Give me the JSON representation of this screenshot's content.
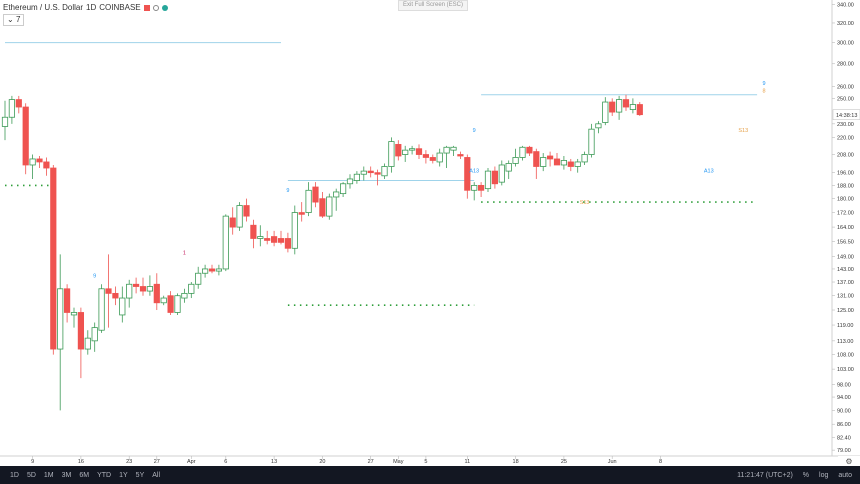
{
  "legend": {
    "symbol": "Ethereum / U.S. Dollar",
    "interval": "1D",
    "exchange": "COINBASE",
    "collapse_label": "7"
  },
  "exit_fullscreen": "Exit Full Screen (ESC)",
  "colors": {
    "up": "#26a69a",
    "up_body": "#ffffff",
    "up_outline": "#3c9a56",
    "down": "#ef5350",
    "level_line": "#9fd3ea",
    "level_dots": "#2e9e3a",
    "label_blue": "#2196f3",
    "label_orange": "#e6a14a",
    "label_red": "#c2185b",
    "axis_text": "#333333",
    "price_tag_bg": "#ffffff"
  },
  "bottom_bar": {
    "ranges": [
      "1D",
      "5D",
      "1M",
      "3M",
      "6M",
      "YTD",
      "1Y",
      "5Y",
      "All"
    ],
    "clock": "11:21:47 (UTC+2)",
    "percent": "%",
    "log": "log",
    "auto": "auto"
  },
  "chart_data": {
    "type": "candlestick",
    "y_scale": "log",
    "y_ticks": [
      "340.00",
      "320.00",
      "300.00",
      "280.00",
      "260.00",
      "250.00",
      "230.00",
      "220.00",
      "208.00",
      "196.00",
      "188.00",
      "180.00",
      "172.00",
      "164.00",
      "156.50",
      "149.00",
      "143.00",
      "137.00",
      "131.00",
      "125.00",
      "119.00",
      "113.00",
      "108.00",
      "103.00",
      "98.00",
      "94.00",
      "90.00",
      "86.00",
      "82.40",
      "79.00"
    ],
    "y_tick_values": [
      340,
      320,
      300,
      280,
      260,
      250,
      230,
      220,
      208,
      196,
      188,
      180,
      172,
      164,
      156.5,
      149,
      143,
      137,
      131,
      125,
      119,
      113,
      108,
      103,
      98,
      94,
      90,
      86,
      82.4,
      79
    ],
    "x_ticks": [
      {
        "label": "9",
        "i": 4
      },
      {
        "label": "16",
        "i": 11
      },
      {
        "label": "23",
        "i": 18
      },
      {
        "label": "27",
        "i": 22
      },
      {
        "label": "Apr",
        "i": 27
      },
      {
        "label": "6",
        "i": 32
      },
      {
        "label": "13",
        "i": 39
      },
      {
        "label": "20",
        "i": 46
      },
      {
        "label": "27",
        "i": 53
      },
      {
        "label": "May",
        "i": 57
      },
      {
        "label": "5",
        "i": 61
      },
      {
        "label": "11",
        "i": 67
      },
      {
        "label": "18",
        "i": 74
      },
      {
        "label": "25",
        "i": 81
      },
      {
        "label": "Jun",
        "i": 88
      },
      {
        "label": "8",
        "i": 95
      }
    ],
    "last_price_label": "14:38:13",
    "last_price": 237,
    "candles": [
      {
        "o": 228,
        "h": 248,
        "l": 218,
        "c": 235
      },
      {
        "o": 235,
        "h": 252,
        "l": 230,
        "c": 249
      },
      {
        "o": 249,
        "h": 252,
        "l": 238,
        "c": 243
      },
      {
        "o": 243,
        "h": 246,
        "l": 195,
        "c": 201
      },
      {
        "o": 201,
        "h": 208,
        "l": 192,
        "c": 205
      },
      {
        "o": 205,
        "h": 207,
        "l": 199,
        "c": 203
      },
      {
        "o": 203,
        "h": 206,
        "l": 194,
        "c": 199
      },
      {
        "o": 199,
        "h": 201,
        "l": 108,
        "c": 110
      },
      {
        "o": 110,
        "h": 150,
        "l": 90,
        "c": 134
      },
      {
        "o": 134,
        "h": 136,
        "l": 120,
        "c": 124
      },
      {
        "o": 123,
        "h": 126,
        "l": 118,
        "c": 124
      },
      {
        "o": 124,
        "h": 126,
        "l": 100,
        "c": 110
      },
      {
        "o": 110,
        "h": 117,
        "l": 108,
        "c": 114
      },
      {
        "o": 113,
        "h": 120,
        "l": 109,
        "c": 118
      },
      {
        "o": 117,
        "h": 136,
        "l": 116,
        "c": 134
      },
      {
        "o": 134,
        "h": 150,
        "l": 118,
        "c": 132
      },
      {
        "o": 132,
        "h": 135,
        "l": 127,
        "c": 130
      },
      {
        "o": 123,
        "h": 135,
        "l": 120,
        "c": 130
      },
      {
        "o": 130,
        "h": 138,
        "l": 126,
        "c": 136
      },
      {
        "o": 136,
        "h": 139,
        "l": 132,
        "c": 135
      },
      {
        "o": 135,
        "h": 139,
        "l": 131,
        "c": 133
      },
      {
        "o": 133,
        "h": 140,
        "l": 131,
        "c": 135
      },
      {
        "o": 136,
        "h": 141,
        "l": 125,
        "c": 128
      },
      {
        "o": 128,
        "h": 131,
        "l": 127,
        "c": 130
      },
      {
        "o": 131,
        "h": 133,
        "l": 123,
        "c": 124
      },
      {
        "o": 124,
        "h": 132,
        "l": 123,
        "c": 131
      },
      {
        "o": 130,
        "h": 134,
        "l": 128,
        "c": 132
      },
      {
        "o": 132,
        "h": 137,
        "l": 130,
        "c": 136
      },
      {
        "o": 136,
        "h": 144,
        "l": 134,
        "c": 141
      },
      {
        "o": 141,
        "h": 145,
        "l": 139,
        "c": 143
      },
      {
        "o": 143,
        "h": 145,
        "l": 141,
        "c": 142
      },
      {
        "o": 142,
        "h": 145,
        "l": 140,
        "c": 143
      },
      {
        "o": 143,
        "h": 171,
        "l": 142,
        "c": 170
      },
      {
        "o": 169,
        "h": 175,
        "l": 160,
        "c": 164
      },
      {
        "o": 164,
        "h": 178,
        "l": 162,
        "c": 176
      },
      {
        "o": 176,
        "h": 180,
        "l": 167,
        "c": 170
      },
      {
        "o": 165,
        "h": 168,
        "l": 153,
        "c": 158
      },
      {
        "o": 158,
        "h": 165,
        "l": 154,
        "c": 159
      },
      {
        "o": 158,
        "h": 162,
        "l": 155,
        "c": 157
      },
      {
        "o": 159,
        "h": 162,
        "l": 154,
        "c": 156
      },
      {
        "o": 158,
        "h": 162,
        "l": 155,
        "c": 156
      },
      {
        "o": 158,
        "h": 161,
        "l": 151,
        "c": 153
      },
      {
        "o": 153,
        "h": 176,
        "l": 150,
        "c": 172
      },
      {
        "o": 172,
        "h": 178,
        "l": 167,
        "c": 171
      },
      {
        "o": 172,
        "h": 190,
        "l": 170,
        "c": 185
      },
      {
        "o": 187,
        "h": 190,
        "l": 175,
        "c": 178
      },
      {
        "o": 180,
        "h": 184,
        "l": 169,
        "c": 170
      },
      {
        "o": 170,
        "h": 183,
        "l": 168,
        "c": 181
      },
      {
        "o": 181,
        "h": 186,
        "l": 173,
        "c": 184
      },
      {
        "o": 183,
        "h": 190,
        "l": 181,
        "c": 189
      },
      {
        "o": 189,
        "h": 195,
        "l": 186,
        "c": 192
      },
      {
        "o": 191,
        "h": 197,
        "l": 189,
        "c": 195
      },
      {
        "o": 195,
        "h": 200,
        "l": 191,
        "c": 197
      },
      {
        "o": 197,
        "h": 200,
        "l": 193,
        "c": 196
      },
      {
        "o": 196,
        "h": 198,
        "l": 188,
        "c": 195
      },
      {
        "o": 194,
        "h": 202,
        "l": 192,
        "c": 200
      },
      {
        "o": 200,
        "h": 220,
        "l": 196,
        "c": 217
      },
      {
        "o": 215,
        "h": 218,
        "l": 204,
        "c": 207
      },
      {
        "o": 208,
        "h": 214,
        "l": 203,
        "c": 211
      },
      {
        "o": 211,
        "h": 214,
        "l": 208,
        "c": 212
      },
      {
        "o": 212,
        "h": 215,
        "l": 205,
        "c": 208
      },
      {
        "o": 208,
        "h": 211,
        "l": 202,
        "c": 206
      },
      {
        "o": 206,
        "h": 208,
        "l": 202,
        "c": 204
      },
      {
        "o": 203,
        "h": 212,
        "l": 200,
        "c": 209
      },
      {
        "o": 209,
        "h": 214,
        "l": 199,
        "c": 213
      },
      {
        "o": 211,
        "h": 214,
        "l": 207,
        "c": 213
      },
      {
        "o": 208,
        "h": 210,
        "l": 205,
        "c": 207
      },
      {
        "o": 206,
        "h": 208,
        "l": 180,
        "c": 185
      },
      {
        "o": 185,
        "h": 190,
        "l": 179,
        "c": 188
      },
      {
        "o": 188,
        "h": 190,
        "l": 181,
        "c": 185
      },
      {
        "o": 186,
        "h": 199,
        "l": 184,
        "c": 197
      },
      {
        "o": 197,
        "h": 200,
        "l": 186,
        "c": 189
      },
      {
        "o": 190,
        "h": 204,
        "l": 188,
        "c": 201
      },
      {
        "o": 197,
        "h": 204,
        "l": 192,
        "c": 202
      },
      {
        "o": 202,
        "h": 212,
        "l": 200,
        "c": 206
      },
      {
        "o": 206,
        "h": 214,
        "l": 204,
        "c": 213
      },
      {
        "o": 213,
        "h": 214,
        "l": 207,
        "c": 209
      },
      {
        "o": 210,
        "h": 212,
        "l": 192,
        "c": 200
      },
      {
        "o": 200,
        "h": 209,
        "l": 197,
        "c": 206
      },
      {
        "o": 207,
        "h": 210,
        "l": 200,
        "c": 205
      },
      {
        "o": 205,
        "h": 209,
        "l": 201,
        "c": 201
      },
      {
        "o": 201,
        "h": 207,
        "l": 198,
        "c": 204
      },
      {
        "o": 203,
        "h": 205,
        "l": 197,
        "c": 200
      },
      {
        "o": 200,
        "h": 205,
        "l": 196,
        "c": 203
      },
      {
        "o": 203,
        "h": 210,
        "l": 201,
        "c": 208
      },
      {
        "o": 208,
        "h": 230,
        "l": 206,
        "c": 226
      },
      {
        "o": 227,
        "h": 232,
        "l": 223,
        "c": 230
      },
      {
        "o": 231,
        "h": 251,
        "l": 229,
        "c": 247
      },
      {
        "o": 247,
        "h": 250,
        "l": 236,
        "c": 239
      },
      {
        "o": 239,
        "h": 252,
        "l": 233,
        "c": 249
      },
      {
        "o": 249,
        "h": 253,
        "l": 240,
        "c": 243
      },
      {
        "o": 241,
        "h": 250,
        "l": 238,
        "c": 245
      },
      {
        "o": 245,
        "h": 247,
        "l": 236,
        "c": 237
      }
    ],
    "levels": [
      {
        "y": 300,
        "from": 0,
        "to": 40,
        "style": "solid"
      },
      {
        "y": 191,
        "from": 41,
        "to": 68,
        "style": "solid"
      },
      {
        "y": 253,
        "from": 69,
        "to": 109,
        "style": "solid"
      },
      {
        "y": 188,
        "from": 0,
        "to": 7,
        "style": "dotted"
      },
      {
        "y": 127,
        "from": 41,
        "to": 68,
        "style": "dotted"
      },
      {
        "y": 178,
        "from": 69,
        "to": 109,
        "style": "dotted"
      }
    ],
    "annotations": [
      {
        "i": 13,
        "text": "9",
        "pos": "above",
        "color": "label_blue",
        "price": 139
      },
      {
        "i": 26,
        "text": "1",
        "pos": "above",
        "color": "label_red",
        "price": 150
      },
      {
        "i": 41,
        "text": "9",
        "pos": "above",
        "color": "label_blue",
        "price": 184
      },
      {
        "i": 68,
        "text": "9",
        "pos": "above",
        "color": "label_blue",
        "price": 224
      },
      {
        "i": 68,
        "text": "A13",
        "pos": "below",
        "color": "label_blue",
        "price": 196
      },
      {
        "i": 84,
        "text": "S13",
        "pos": "below",
        "color": "label_orange",
        "price": 177
      },
      {
        "i": 102,
        "text": "A13",
        "pos": "below",
        "color": "label_blue",
        "price": 196
      },
      {
        "i": 107,
        "text": "S13",
        "pos": "below",
        "color": "label_orange",
        "price": 224
      },
      {
        "i": 110,
        "text": "9",
        "pos": "above",
        "color": "label_blue",
        "price": 261
      },
      {
        "i": 110,
        "text": "8",
        "pos": "above",
        "color": "label_orange",
        "price": 255
      }
    ]
  }
}
